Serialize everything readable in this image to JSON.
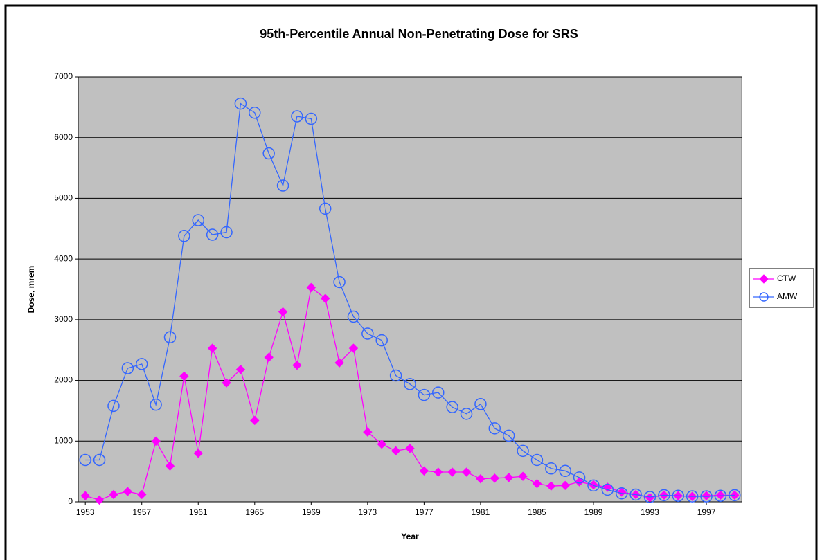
{
  "chart_data": {
    "type": "line",
    "title": "95th-Percentile Annual Non-Penetrating Dose for SRS",
    "x_label": "Year",
    "y_label": "Dose, mrem",
    "x": [
      1953,
      1954,
      1955,
      1956,
      1957,
      1958,
      1959,
      1960,
      1961,
      1962,
      1963,
      1964,
      1965,
      1966,
      1967,
      1968,
      1969,
      1970,
      1971,
      1972,
      1973,
      1974,
      1975,
      1976,
      1977,
      1978,
      1979,
      1980,
      1981,
      1982,
      1983,
      1984,
      1985,
      1986,
      1987,
      1988,
      1989,
      1990,
      1991,
      1992,
      1993,
      1994,
      1995,
      1996,
      1997,
      1998,
      1999
    ],
    "series": [
      {
        "name": "CTW",
        "color": "#ff00ff",
        "marker": "diamond",
        "values": [
          100,
          30,
          120,
          170,
          120,
          1000,
          590,
          2070,
          800,
          2530,
          1960,
          2180,
          1340,
          2380,
          3130,
          2250,
          3530,
          3350,
          2290,
          2530,
          1150,
          950,
          840,
          880,
          510,
          490,
          490,
          490,
          380,
          390,
          400,
          420,
          300,
          260,
          270,
          330,
          280,
          240,
          160,
          120,
          70,
          110,
          100,
          90,
          100,
          110,
          110
        ]
      },
      {
        "name": "AMW",
        "color": "#3366ff",
        "marker": "circle",
        "values": [
          690,
          690,
          1580,
          2200,
          2270,
          1600,
          2710,
          4380,
          4640,
          4400,
          4440,
          6560,
          6410,
          5740,
          5210,
          6350,
          6310,
          4830,
          3620,
          3050,
          2770,
          2660,
          2080,
          1940,
          1760,
          1800,
          1560,
          1450,
          1610,
          1210,
          1090,
          840,
          690,
          550,
          510,
          400,
          270,
          200,
          140,
          120,
          80,
          110,
          100,
          90,
          90,
          100,
          110
        ]
      }
    ],
    "xlim": [
      1952.5,
      1999.5
    ],
    "xticks": [
      1953,
      1957,
      1961,
      1965,
      1969,
      1973,
      1977,
      1981,
      1985,
      1989,
      1993,
      1997
    ],
    "ylim": [
      0,
      7000
    ],
    "yticks": [
      0,
      1000,
      2000,
      3000,
      4000,
      5000,
      6000,
      7000
    ],
    "grid": true,
    "legend": "right"
  }
}
